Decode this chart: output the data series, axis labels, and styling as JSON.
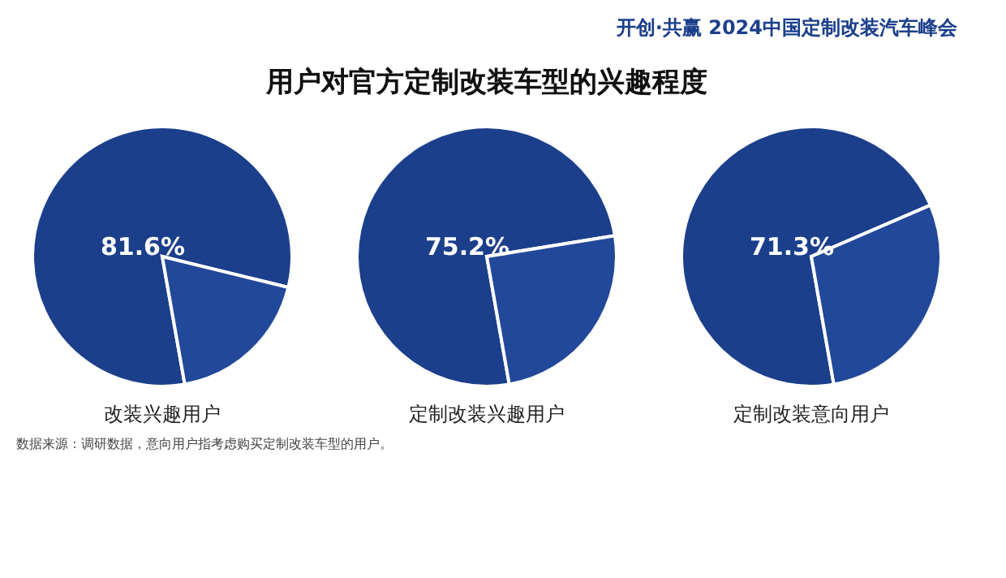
{
  "chart_data": [
    {
      "type": "other",
      "title": "用户对官方定制改装车型的兴趣程度",
      "annotations": [
        "开创·共赢 2024中国定制改装汽车峰会",
        "数据来源：调研数据，意向用户指考虑购买定制改装车型的用户。"
      ]
    },
    {
      "type": "pie",
      "xlabel": "改装兴趣用户",
      "categories": [
        null,
        null
      ],
      "values": [
        81.6,
        18.4
      ],
      "colors": [
        "#1b3f8b",
        "#22489a"
      ],
      "value_labels": [
        "81.6%",
        null
      ]
    },
    {
      "type": "pie",
      "xlabel": "定制改装兴趣用户",
      "categories": [
        null,
        null
      ],
      "values": [
        75.2,
        24.8
      ],
      "colors": [
        "#1b3f8b",
        "#22489a"
      ],
      "value_labels": [
        "75.2%",
        null
      ]
    },
    {
      "type": "pie",
      "xlabel": "定制改装意向用户",
      "categories": [
        null,
        null
      ],
      "values": [
        71.3,
        28.7
      ],
      "colors": [
        "#1b3f8b",
        "#22489a"
      ],
      "value_labels": [
        "71.3%",
        null
      ]
    }
  ]
}
